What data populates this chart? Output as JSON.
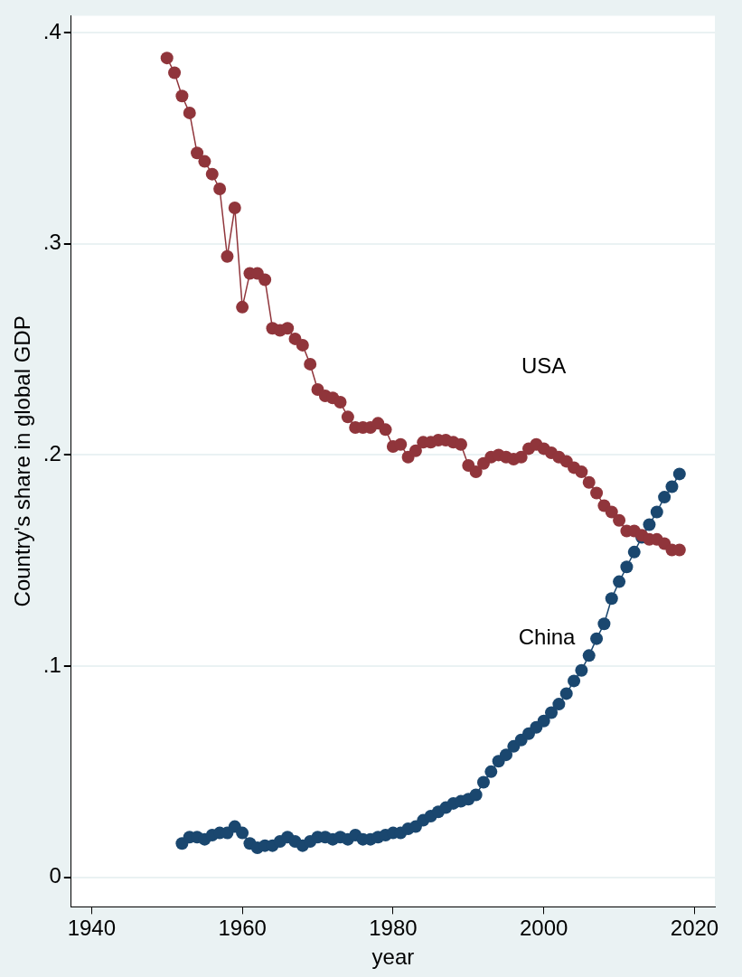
{
  "chart_data": {
    "type": "line",
    "xlabel": "year",
    "ylabel": "Country's share in global GDP",
    "xlim": [
      1937.3,
      2022.7
    ],
    "xticks": [
      1940,
      1960,
      1980,
      2000,
      2020
    ],
    "ylim": [
      -0.014,
      0.408
    ],
    "yticks": [
      0,
      {
        "value": 0.1,
        "label": ".1"
      },
      {
        "value": 0.2,
        "label": ".2"
      },
      {
        "value": 0.3,
        "label": ".3"
      },
      {
        "value": 0.4,
        "label": ".4"
      }
    ],
    "grid": "y",
    "legend": false,
    "marker": "circle",
    "line_style": "solid",
    "series": [
      {
        "name": "USA",
        "color": "#90353b",
        "x": [
          1950,
          1951,
          1952,
          1953,
          1954,
          1955,
          1956,
          1957,
          1958,
          1959,
          1960,
          1961,
          1962,
          1963,
          1964,
          1965,
          1966,
          1967,
          1968,
          1969,
          1970,
          1971,
          1972,
          1973,
          1974,
          1975,
          1976,
          1977,
          1978,
          1979,
          1980,
          1981,
          1982,
          1983,
          1984,
          1985,
          1986,
          1987,
          1988,
          1989,
          1990,
          1991,
          1992,
          1993,
          1994,
          1995,
          1996,
          1997,
          1998,
          1999,
          2000,
          2001,
          2002,
          2003,
          2004,
          2005,
          2006,
          2007,
          2008,
          2009,
          2010,
          2011,
          2012,
          2013,
          2014,
          2015,
          2016,
          2017,
          2018
        ],
        "values": [
          0.388,
          0.381,
          0.37,
          0.362,
          0.343,
          0.339,
          0.333,
          0.326,
          0.294,
          0.317,
          0.27,
          0.286,
          0.286,
          0.283,
          0.26,
          0.259,
          0.26,
          0.255,
          0.252,
          0.243,
          0.231,
          0.228,
          0.227,
          0.225,
          0.218,
          0.213,
          0.213,
          0.213,
          0.215,
          0.212,
          0.204,
          0.205,
          0.199,
          0.202,
          0.206,
          0.206,
          0.207,
          0.207,
          0.206,
          0.205,
          0.195,
          0.192,
          0.196,
          0.199,
          0.2,
          0.199,
          0.198,
          0.199,
          0.203,
          0.205,
          0.203,
          0.201,
          0.199,
          0.197,
          0.194,
          0.192,
          0.187,
          0.182,
          0.176,
          0.173,
          0.169,
          0.164,
          0.164,
          0.162,
          0.16,
          0.16,
          0.158,
          0.155,
          0.155
        ]
      },
      {
        "name": "China",
        "color": "#1a476f",
        "x": [
          1952,
          1953,
          1954,
          1955,
          1956,
          1957,
          1958,
          1959,
          1960,
          1961,
          1962,
          1963,
          1964,
          1965,
          1966,
          1967,
          1968,
          1969,
          1970,
          1971,
          1972,
          1973,
          1974,
          1975,
          1976,
          1977,
          1978,
          1979,
          1980,
          1981,
          1982,
          1983,
          1984,
          1985,
          1986,
          1987,
          1988,
          1989,
          1990,
          1991,
          1992,
          1993,
          1994,
          1995,
          1996,
          1997,
          1998,
          1999,
          2000,
          2001,
          2002,
          2003,
          2004,
          2005,
          2006,
          2007,
          2008,
          2009,
          2010,
          2011,
          2012,
          2013,
          2014,
          2015,
          2016,
          2017,
          2018
        ],
        "values": [
          0.016,
          0.019,
          0.019,
          0.018,
          0.02,
          0.021,
          0.021,
          0.024,
          0.021,
          0.016,
          0.014,
          0.015,
          0.015,
          0.017,
          0.019,
          0.017,
          0.015,
          0.017,
          0.019,
          0.019,
          0.018,
          0.019,
          0.018,
          0.02,
          0.018,
          0.018,
          0.019,
          0.02,
          0.021,
          0.021,
          0.023,
          0.024,
          0.027,
          0.029,
          0.031,
          0.033,
          0.035,
          0.036,
          0.037,
          0.039,
          0.045,
          0.05,
          0.055,
          0.058,
          0.062,
          0.065,
          0.068,
          0.071,
          0.074,
          0.078,
          0.082,
          0.087,
          0.093,
          0.098,
          0.105,
          0.113,
          0.12,
          0.132,
          0.14,
          0.147,
          0.154,
          0.161,
          0.167,
          0.173,
          0.18,
          0.185,
          0.191
        ]
      }
    ]
  }
}
